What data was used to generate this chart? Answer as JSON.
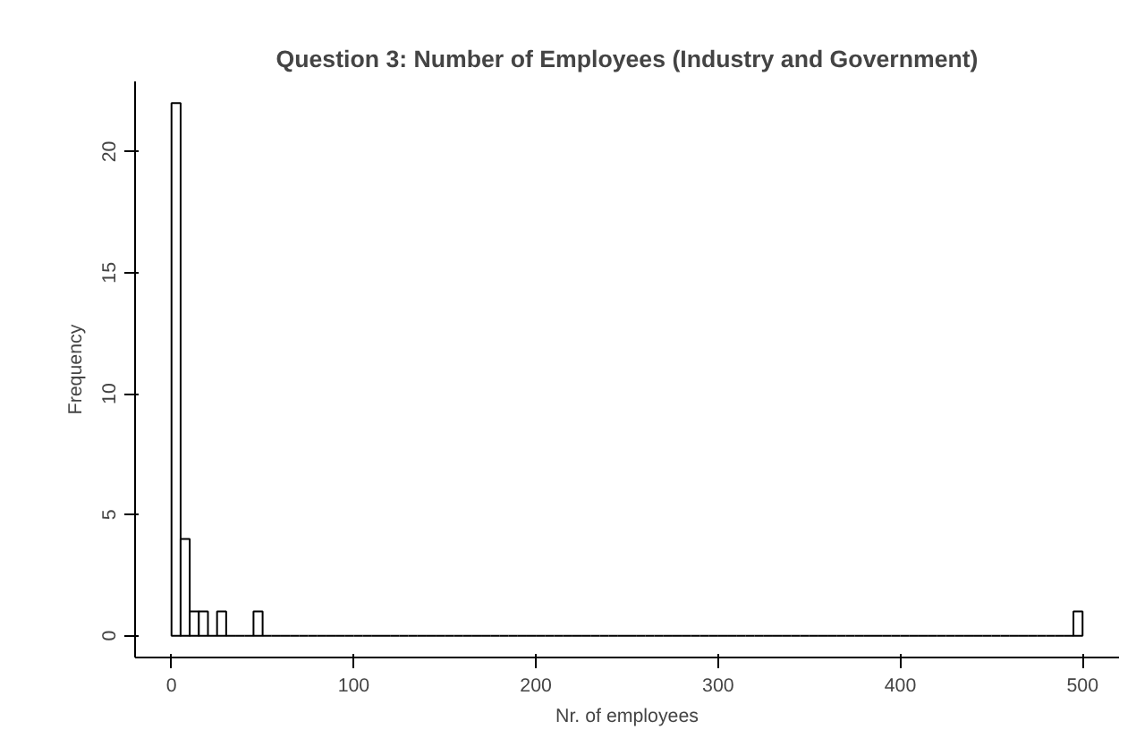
{
  "chart_data": {
    "type": "histogram",
    "title": "Question 3: Number of Employees (Industry and Government)",
    "xlabel": "Nr. of employees",
    "ylabel": "Frequency",
    "bins": [
      0,
      5,
      10,
      15,
      20,
      25,
      30,
      35,
      40,
      45,
      50,
      55,
      60,
      65,
      70,
      75,
      80,
      85,
      90,
      95,
      100,
      105,
      110,
      115,
      120,
      125,
      130,
      135,
      140,
      145,
      150,
      155,
      160,
      165,
      170,
      175,
      180,
      185,
      190,
      195,
      200,
      205,
      210,
      215,
      220,
      225,
      230,
      235,
      240,
      245,
      250,
      255,
      260,
      265,
      270,
      275,
      280,
      285,
      290,
      295,
      300,
      305,
      310,
      315,
      320,
      325,
      330,
      335,
      340,
      345,
      350,
      355,
      360,
      365,
      370,
      375,
      380,
      385,
      390,
      395,
      400,
      405,
      410,
      415,
      420,
      425,
      430,
      435,
      440,
      445,
      450,
      455,
      460,
      465,
      470,
      475,
      480,
      485,
      490,
      495,
      500
    ],
    "values": [
      22,
      4,
      1,
      1,
      0,
      1,
      0,
      0,
      0,
      1,
      0,
      0,
      0,
      0,
      0,
      0,
      0,
      0,
      0,
      0,
      0,
      0,
      0,
      0,
      0,
      0,
      0,
      0,
      0,
      0,
      0,
      0,
      0,
      0,
      0,
      0,
      0,
      0,
      0,
      0,
      0,
      0,
      0,
      0,
      0,
      0,
      0,
      0,
      0,
      0,
      0,
      0,
      0,
      0,
      0,
      0,
      0,
      0,
      0,
      0,
      0,
      0,
      0,
      0,
      0,
      0,
      0,
      0,
      0,
      0,
      0,
      0,
      0,
      0,
      0,
      0,
      0,
      0,
      0,
      0,
      0,
      0,
      0,
      0,
      0,
      0,
      0,
      0,
      0,
      0,
      0,
      0,
      0,
      0,
      0,
      0,
      0,
      0,
      0,
      1
    ],
    "xlim": [
      -20,
      520
    ],
    "ylim": [
      -0.9,
      22.9
    ],
    "xticks": [
      0,
      100,
      200,
      300,
      400,
      500
    ],
    "yticks": [
      0,
      5,
      10,
      15,
      20
    ],
    "grid": false
  }
}
